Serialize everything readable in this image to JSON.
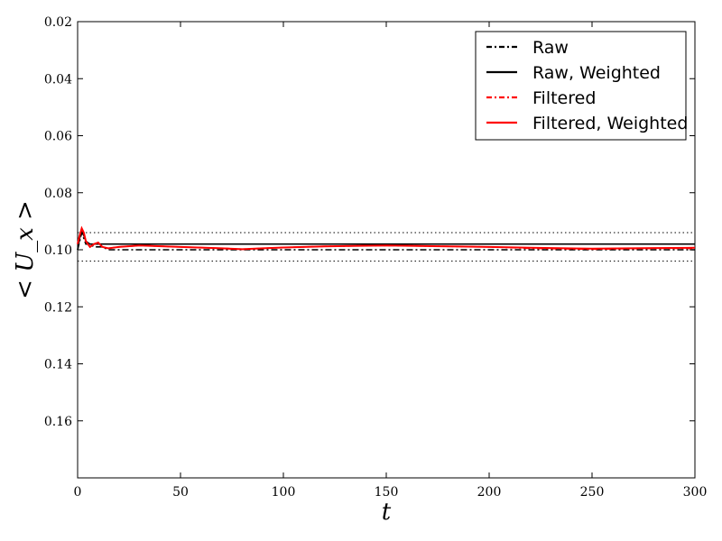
{
  "chart_data": {
    "type": "line",
    "title": "",
    "xlabel": "t",
    "ylabel": "< U_x >",
    "xlim": [
      0,
      300
    ],
    "ylim": [
      0.02,
      0.18
    ],
    "y_inverted": true,
    "grid": false,
    "legend_placement": "top-right",
    "x_ticks": [
      "0",
      "50",
      "100",
      "150",
      "200",
      "250",
      "300"
    ],
    "y_ticks": [
      "0.02",
      "0.04",
      "0.06",
      "0.08",
      "0.10",
      "0.12",
      "0.14",
      "0.16"
    ],
    "reference_lines": [
      0.094,
      0.104
    ],
    "series": [
      {
        "name": "Raw",
        "style": "dashdot",
        "color": "#000000",
        "x": [
          0,
          1,
          2,
          3,
          4,
          6,
          8,
          10,
          12,
          15,
          20,
          30,
          50,
          80,
          100,
          150,
          200,
          250,
          300
        ],
        "y": [
          0.1,
          0.097,
          0.094,
          0.096,
          0.098,
          0.098,
          0.099,
          0.099,
          0.099,
          0.1,
          0.1,
          0.1,
          0.1,
          0.1,
          0.1,
          0.1,
          0.1,
          0.1,
          0.1
        ]
      },
      {
        "name": "Raw, Weighted",
        "style": "solid",
        "color": "#000000",
        "x": [
          0,
          1,
          2,
          3,
          4,
          6,
          8,
          10,
          12,
          15,
          20,
          30,
          50,
          80,
          100,
          150,
          200,
          250,
          300
        ],
        "y": [
          0.1,
          0.096,
          0.093,
          0.095,
          0.097,
          0.098,
          0.098,
          0.098,
          0.098,
          0.098,
          0.098,
          0.098,
          0.098,
          0.098,
          0.098,
          0.098,
          0.098,
          0.098,
          0.098
        ]
      },
      {
        "name": "Filtered",
        "style": "dashdot",
        "color": "#ff0000",
        "x": [
          0,
          1,
          2,
          3,
          4,
          6,
          8,
          10,
          12,
          15,
          20,
          30,
          50,
          70,
          80,
          90,
          100,
          120,
          150,
          180,
          200,
          220,
          250,
          280,
          300
        ],
        "y": [
          0.098,
          0.095,
          0.0925,
          0.094,
          0.097,
          0.099,
          0.098,
          0.0975,
          0.099,
          0.0995,
          0.099,
          0.0985,
          0.099,
          0.0995,
          0.0998,
          0.0995,
          0.0992,
          0.0988,
          0.0985,
          0.0988,
          0.099,
          0.0995,
          0.0998,
          0.0995,
          0.0995
        ]
      },
      {
        "name": "Filtered, Weighted",
        "style": "solid",
        "color": "#ff0000",
        "x": [
          0,
          1,
          2,
          3,
          4,
          6,
          8,
          10,
          12,
          15,
          20,
          30,
          50,
          70,
          80,
          90,
          100,
          120,
          150,
          180,
          200,
          220,
          250,
          280,
          300
        ],
        "y": [
          0.098,
          0.095,
          0.0925,
          0.094,
          0.097,
          0.099,
          0.098,
          0.0975,
          0.099,
          0.0995,
          0.099,
          0.0985,
          0.099,
          0.0995,
          0.0998,
          0.0995,
          0.0992,
          0.0988,
          0.0985,
          0.0988,
          0.099,
          0.0993,
          0.0996,
          0.0994,
          0.0993
        ]
      }
    ]
  }
}
